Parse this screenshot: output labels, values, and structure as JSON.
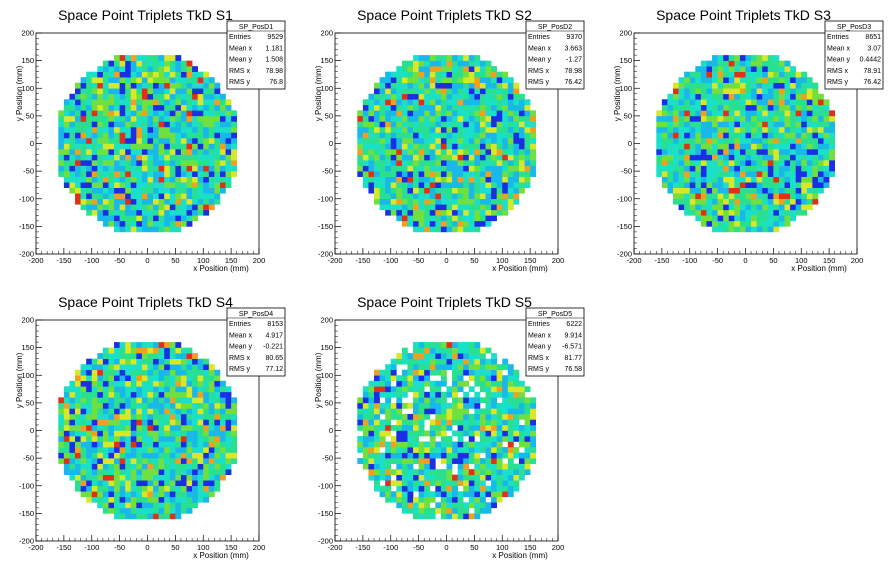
{
  "chart_data": [
    {
      "type": "heatmap",
      "title": "Space Point Triplets TkD S1",
      "xlabel": "x Position (mm)",
      "ylabel": "y Position (mm)",
      "xlim": [
        -200,
        200
      ],
      "ylim": [
        -200,
        200
      ],
      "xticks": [
        -200,
        -150,
        -100,
        -50,
        0,
        50,
        100,
        150,
        200
      ],
      "yticks": [
        -200,
        -150,
        -100,
        -50,
        0,
        50,
        100,
        150,
        200
      ],
      "radius": 165,
      "bin_size": 10,
      "stats": {
        "name": "SP_PosD1",
        "rows": [
          [
            "Entries",
            "9529"
          ],
          [
            "Mean x",
            "1.181"
          ],
          [
            "Mean y",
            "1.508"
          ],
          [
            "RMS x",
            "78.98"
          ],
          [
            "RMS y",
            "76.8"
          ]
        ]
      }
    },
    {
      "type": "heatmap",
      "title": "Space Point Triplets TkD S2",
      "xlabel": "x Position (mm)",
      "ylabel": "y Position (mm)",
      "xlim": [
        -200,
        200
      ],
      "ylim": [
        -200,
        200
      ],
      "xticks": [
        -200,
        -150,
        -100,
        -50,
        0,
        50,
        100,
        150,
        200
      ],
      "yticks": [
        -200,
        -150,
        -100,
        -50,
        0,
        50,
        100,
        150,
        200
      ],
      "radius": 165,
      "bin_size": 10,
      "stats": {
        "name": "SP_PosD2",
        "rows": [
          [
            "Entries",
            "9370"
          ],
          [
            "Mean x",
            "3.663"
          ],
          [
            "Mean y",
            "-1.27"
          ],
          [
            "RMS x",
            "78.98"
          ],
          [
            "RMS y",
            "76.42"
          ]
        ]
      }
    },
    {
      "type": "heatmap",
      "title": "Space Point Triplets TkD S3",
      "xlabel": "x Position (mm)",
      "ylabel": "y Position (mm)",
      "xlim": [
        -200,
        200
      ],
      "ylim": [
        -200,
        200
      ],
      "xticks": [
        -200,
        -150,
        -100,
        -50,
        0,
        50,
        100,
        150,
        200
      ],
      "yticks": [
        -200,
        -150,
        -100,
        -50,
        0,
        50,
        100,
        150,
        200
      ],
      "radius": 165,
      "bin_size": 10,
      "stats": {
        "name": "SP_PosD3",
        "rows": [
          [
            "Entries",
            "8651"
          ],
          [
            "Mean x",
            "3.07"
          ],
          [
            "Mean y",
            "0.4442"
          ],
          [
            "RMS x",
            "78.91"
          ],
          [
            "RMS y",
            "76.42"
          ]
        ]
      }
    },
    {
      "type": "heatmap",
      "title": "Space Point Triplets TkD S4",
      "xlabel": "x Position (mm)",
      "ylabel": "y Position (mm)",
      "xlim": [
        -200,
        200
      ],
      "ylim": [
        -200,
        200
      ],
      "xticks": [
        -200,
        -150,
        -100,
        -50,
        0,
        50,
        100,
        150,
        200
      ],
      "yticks": [
        -200,
        -150,
        -100,
        -50,
        0,
        50,
        100,
        150,
        200
      ],
      "radius": 165,
      "bin_size": 10,
      "stats": {
        "name": "SP_PosD4",
        "rows": [
          [
            "Entries",
            "8153"
          ],
          [
            "Mean x",
            "4.917"
          ],
          [
            "Mean y",
            "-0.221"
          ],
          [
            "RMS x",
            "80.65"
          ],
          [
            "RMS y",
            "77.12"
          ]
        ]
      }
    },
    {
      "type": "heatmap",
      "title": "Space Point Triplets TkD S5",
      "xlabel": "x Position (mm)",
      "ylabel": "y Position (mm)",
      "xlim": [
        -200,
        200
      ],
      "ylim": [
        -200,
        200
      ],
      "xticks": [
        -200,
        -150,
        -100,
        -50,
        0,
        50,
        100,
        150,
        200
      ],
      "yticks": [
        -200,
        -150,
        -100,
        -50,
        0,
        50,
        100,
        150,
        200
      ],
      "radius": 165,
      "bin_size": 10,
      "stats": {
        "name": "SP_PosD5",
        "rows": [
          [
            "Entries",
            "6222"
          ],
          [
            "Mean x",
            "9.914"
          ],
          [
            "Mean y",
            "-6.571"
          ],
          [
            "RMS x",
            "81.77"
          ],
          [
            "RMS y",
            "76.58"
          ]
        ]
      }
    }
  ],
  "colors": {
    "palette": [
      "#1a2ee6",
      "#18b8e8",
      "#1be0c8",
      "#28e090",
      "#70e040",
      "#d8e828",
      "#f0a020",
      "#e03018"
    ],
    "background": "#ffffff",
    "frame": "#000000"
  }
}
